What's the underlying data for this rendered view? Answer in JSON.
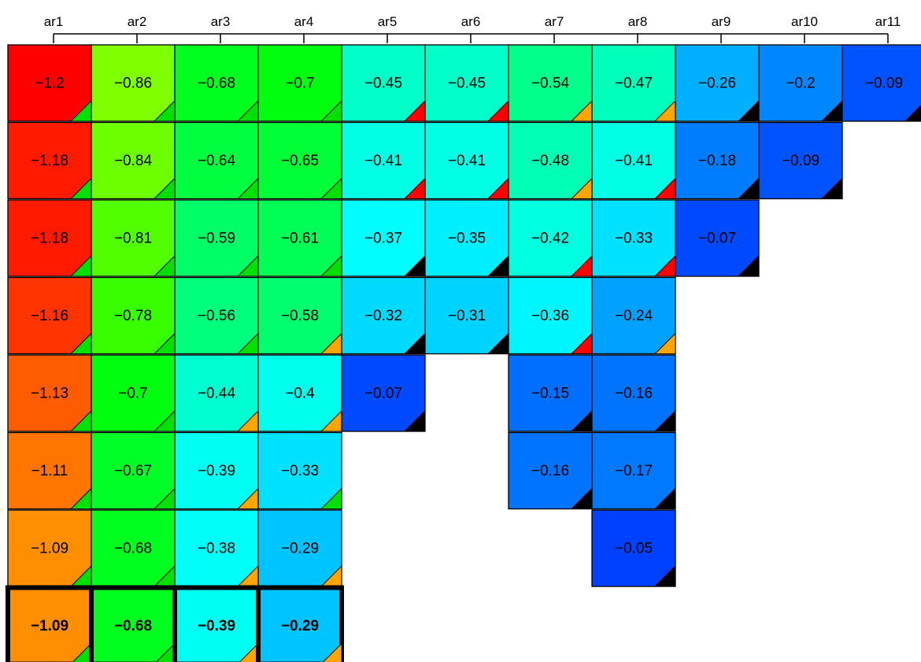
{
  "chart_data": {
    "type": "heatmap",
    "title": "",
    "xlabel": "",
    "ylabel": "",
    "columns": [
      "ar1",
      "ar2",
      "ar3",
      "ar4",
      "ar5",
      "ar6",
      "ar7",
      "ar8",
      "ar9",
      "ar10",
      "ar11"
    ],
    "value_range": [
      -1.2,
      -0.05
    ],
    "colormap": "rainbow (red = lowest, blue = highest)",
    "corner_marker_colors": {
      "g": "#00e000",
      "r": "#ff0000",
      "o": "#ffa500",
      "k": "#000000"
    },
    "rows": [
      {
        "values": [
          -1.2,
          -0.86,
          -0.68,
          -0.7,
          -0.45,
          -0.45,
          -0.54,
          -0.47,
          -0.26,
          -0.2,
          -0.09
        ],
        "markers": [
          "g",
          "g",
          "g",
          "g",
          "r",
          "r",
          "o",
          "o",
          "k",
          "k",
          "k"
        ]
      },
      {
        "values": [
          -1.18,
          -0.84,
          -0.64,
          -0.65,
          -0.41,
          -0.41,
          -0.48,
          -0.41,
          -0.18,
          -0.09,
          null
        ],
        "markers": [
          "g",
          "g",
          "g",
          "g",
          "r",
          "r",
          "o",
          "r",
          "k",
          "k",
          null
        ]
      },
      {
        "values": [
          -1.18,
          -0.81,
          -0.59,
          -0.61,
          -0.37,
          -0.35,
          -0.42,
          -0.33,
          -0.07,
          null,
          null
        ],
        "markers": [
          "g",
          "g",
          "g",
          "g",
          "k",
          "k",
          "r",
          "r",
          "k",
          null,
          null
        ]
      },
      {
        "values": [
          -1.16,
          -0.78,
          -0.56,
          -0.58,
          -0.32,
          -0.31,
          -0.36,
          -0.24,
          null,
          null,
          null
        ],
        "markers": [
          "g",
          "g",
          "g",
          "o",
          "k",
          "k",
          "r",
          "o",
          null,
          null,
          null
        ]
      },
      {
        "values": [
          -1.13,
          -0.7,
          -0.44,
          -0.4,
          -0.07,
          null,
          -0.15,
          -0.16,
          null,
          null,
          null
        ],
        "markers": [
          "g",
          "g",
          "o",
          "o",
          "k",
          null,
          "k",
          "k",
          null,
          null,
          null
        ]
      },
      {
        "values": [
          -1.11,
          -0.67,
          -0.39,
          -0.33,
          null,
          null,
          -0.16,
          -0.17,
          null,
          null,
          null
        ],
        "markers": [
          "g",
          "g",
          "o",
          "g",
          null,
          null,
          "k",
          "k",
          null,
          null,
          null
        ]
      },
      {
        "values": [
          -1.09,
          -0.68,
          -0.38,
          -0.29,
          null,
          null,
          null,
          -0.05,
          null,
          null,
          null
        ],
        "markers": [
          "g",
          "g",
          "o",
          "o",
          null,
          null,
          null,
          "k",
          null,
          null,
          null
        ]
      },
      {
        "values": [
          -1.09,
          -0.68,
          -0.39,
          -0.29,
          null,
          null,
          null,
          null,
          null,
          null,
          null
        ],
        "markers": [
          "g",
          "g",
          "o",
          "o",
          null,
          null,
          null,
          null,
          null,
          null,
          null
        ],
        "highlighted": true
      }
    ]
  }
}
